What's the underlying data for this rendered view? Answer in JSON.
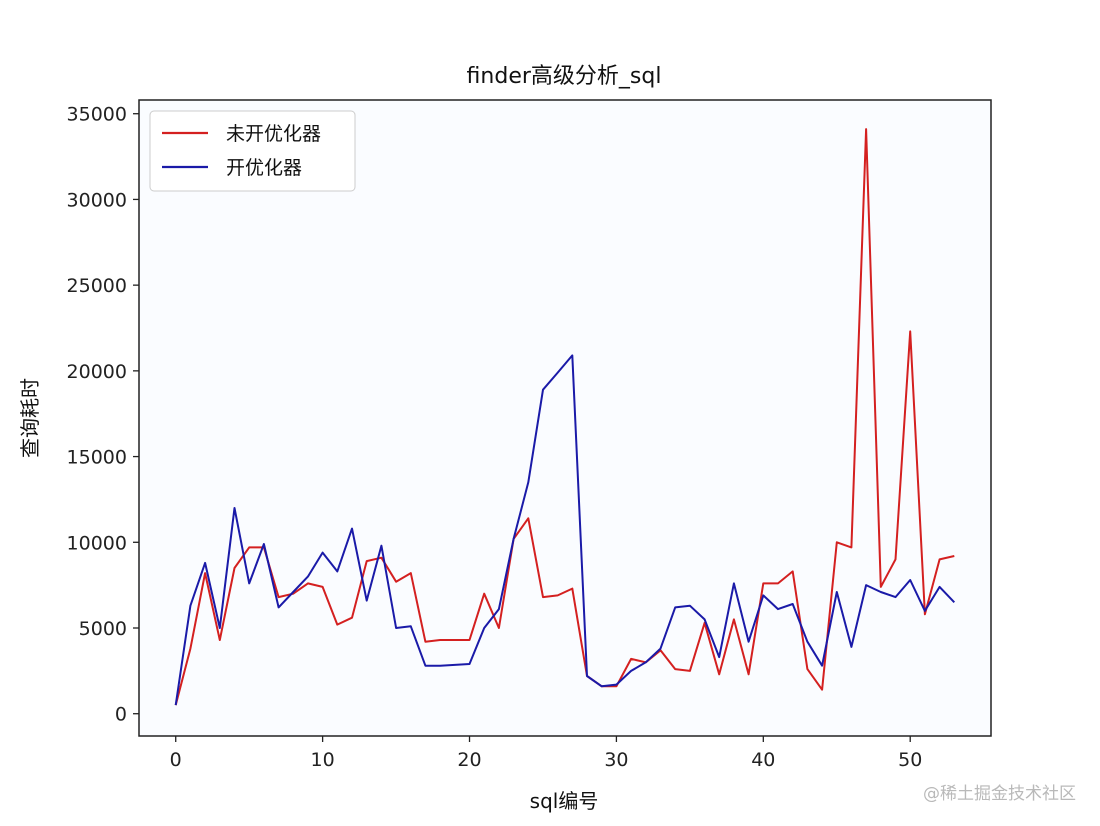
{
  "chart_data": {
    "type": "line",
    "title": "finder高级分析_sql",
    "xlabel": "sql编号",
    "ylabel": "查询耗时",
    "xlim": [
      -2.5,
      55.5
    ],
    "ylim": [
      -1300,
      35800
    ],
    "xticks": [
      0,
      10,
      20,
      30,
      40,
      50
    ],
    "yticks": [
      0,
      5000,
      10000,
      15000,
      20000,
      25000,
      30000,
      35000
    ],
    "legend_position": "top-left",
    "grid": false,
    "series": [
      {
        "name": "未开优化器",
        "color": "#d42020",
        "values": [
          500,
          3800,
          8200,
          4300,
          8500,
          9700,
          9700,
          6800,
          7000,
          7600,
          7400,
          5200,
          5600,
          8900,
          9100,
          7700,
          8200,
          4200,
          4300,
          4300,
          4300,
          7000,
          5000,
          10200,
          11400,
          6800,
          6900,
          7300,
          2200,
          1600,
          1600,
          3200,
          3000,
          3700,
          2600,
          2500,
          5300,
          2300,
          5500,
          2300,
          7600,
          7600,
          8300,
          2600,
          1400,
          10000,
          9700,
          34100,
          7400,
          9000,
          22300,
          5800,
          9000,
          9200
        ]
      },
      {
        "name": "开优化器",
        "color": "#1a1aa8",
        "values": [
          500,
          6300,
          8800,
          5000,
          12000,
          7600,
          9900,
          6200,
          7100,
          8000,
          9400,
          8300,
          10800,
          6600,
          9800,
          5000,
          5100,
          2800,
          2800,
          2850,
          2900,
          5000,
          6100,
          10200,
          13500,
          18900,
          19900,
          20900,
          2200,
          1600,
          1700,
          2500,
          3000,
          3800,
          6200,
          6300,
          5500,
          3300,
          7600,
          4200,
          6900,
          6100,
          6400,
          4200,
          2800,
          7100,
          3900,
          7500,
          7100,
          6800,
          7800,
          6000,
          7400,
          6500
        ]
      }
    ]
  },
  "watermark": "@稀土掘金技术社区"
}
